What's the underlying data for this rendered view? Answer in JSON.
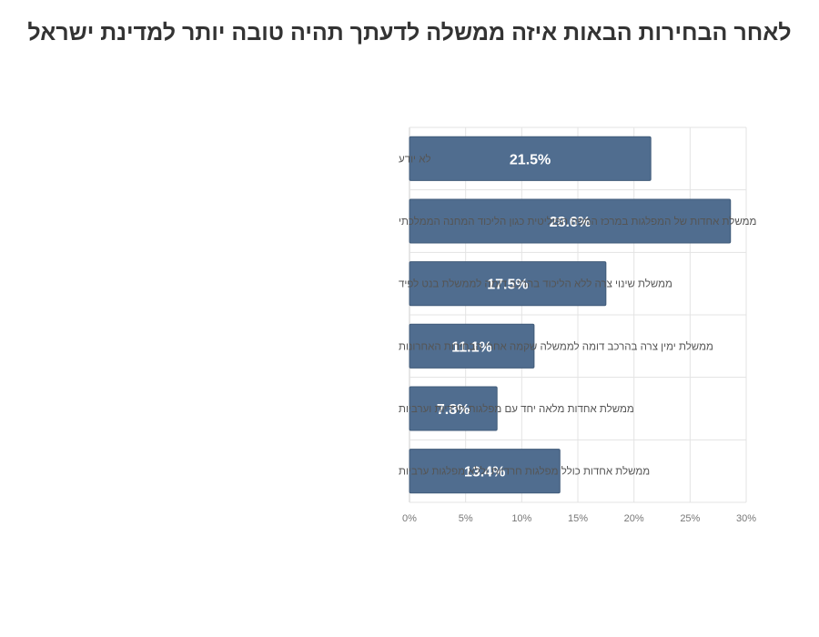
{
  "chart_data": {
    "type": "bar",
    "orientation": "horizontal",
    "title": "לאחר הבחירות הבאות איזה ממשלה לדעתך תהיה טובה יותר למדינת ישראל",
    "categories": [
      "לא יודע",
      "ממשלת אחדות של המפלגות במרכז המפה הפוליטית כגון הליכוד המחנה הממלכתי",
      "ממשלת שינוי צרה ללא הליכוד בהרכב דומה לממשלת בנט  לפיד",
      "ממשלת ימין צרה בהרכב דומה לממשלה שקמה אחרי הבחירות האחרונות",
      "ממשלת אחדות מלאה יחד עם מפלגות חרדיות וערביות",
      "ממשלת אחדות כולל מפלגות חרדיות וללא מפלגות ערביות"
    ],
    "values": [
      21.5,
      28.6,
      17.5,
      11.1,
      7.8,
      13.4
    ],
    "data_labels": [
      "21.5%",
      "28.6%",
      "17.5%",
      "11.1%",
      "7.8%",
      "13.4%"
    ],
    "xlim": [
      0,
      30
    ],
    "x_ticks": [
      0,
      5,
      10,
      15,
      20,
      25,
      30
    ],
    "x_tick_labels": [
      "0%",
      "5%",
      "10%",
      "15%",
      "20%",
      "25%",
      "30%"
    ],
    "grid": true,
    "colors": {
      "bar": "#506d8f",
      "bar_border": "#3f5a78",
      "grid": "#e3e3e3"
    }
  }
}
